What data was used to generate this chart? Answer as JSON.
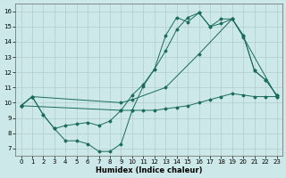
{
  "xlabel": "Humidex (Indice chaleur)",
  "bg_color": "#cce8e8",
  "grid_color": "#b0cccc",
  "line_color": "#1a6b5a",
  "xlim": [
    -0.5,
    23.5
  ],
  "ylim": [
    6.5,
    16.5
  ],
  "xticks": [
    0,
    1,
    2,
    3,
    4,
    5,
    6,
    7,
    8,
    9,
    10,
    11,
    12,
    13,
    14,
    15,
    16,
    17,
    18,
    19,
    20,
    21,
    22,
    23
  ],
  "yticks": [
    7,
    8,
    9,
    10,
    11,
    12,
    13,
    14,
    15,
    16
  ],
  "lines": [
    {
      "x": [
        0,
        1,
        2,
        3,
        4,
        5,
        6,
        7,
        8,
        9,
        10,
        11,
        12,
        13,
        14,
        15,
        16,
        17,
        18,
        19,
        20,
        21,
        22,
        23
      ],
      "y": [
        9.8,
        10.4,
        9.2,
        8.3,
        7.5,
        7.5,
        7.3,
        6.8,
        6.8,
        7.3,
        9.5,
        11.1,
        12.2,
        14.4,
        15.6,
        15.3,
        15.9,
        15.0,
        15.2,
        15.5,
        14.4,
        12.1,
        11.5,
        10.5
      ]
    },
    {
      "x": [
        0,
        1,
        9,
        10,
        13,
        16,
        19,
        20,
        23
      ],
      "y": [
        9.8,
        10.4,
        10.0,
        10.2,
        11.0,
        13.2,
        15.5,
        14.3,
        10.4
      ]
    },
    {
      "x": [
        0,
        1,
        2,
        3,
        4,
        5,
        6,
        7,
        8,
        9,
        10,
        11,
        12,
        13,
        14,
        15,
        16,
        17,
        18,
        19,
        20,
        21,
        22,
        23
      ],
      "y": [
        9.8,
        10.4,
        9.2,
        8.3,
        8.5,
        8.6,
        8.7,
        8.5,
        8.8,
        9.5,
        9.5,
        9.5,
        9.5,
        9.6,
        9.7,
        9.8,
        10.0,
        10.2,
        10.4,
        10.6,
        10.5,
        10.4,
        10.4,
        10.4
      ]
    },
    {
      "x": [
        0,
        9,
        10,
        11,
        12,
        13,
        14,
        15,
        16,
        17,
        18,
        19,
        20,
        21,
        22,
        23
      ],
      "y": [
        9.8,
        9.5,
        10.5,
        11.2,
        12.2,
        13.4,
        14.8,
        15.6,
        15.9,
        15.0,
        15.5,
        15.5,
        14.4,
        12.1,
        11.5,
        10.5
      ]
    }
  ]
}
